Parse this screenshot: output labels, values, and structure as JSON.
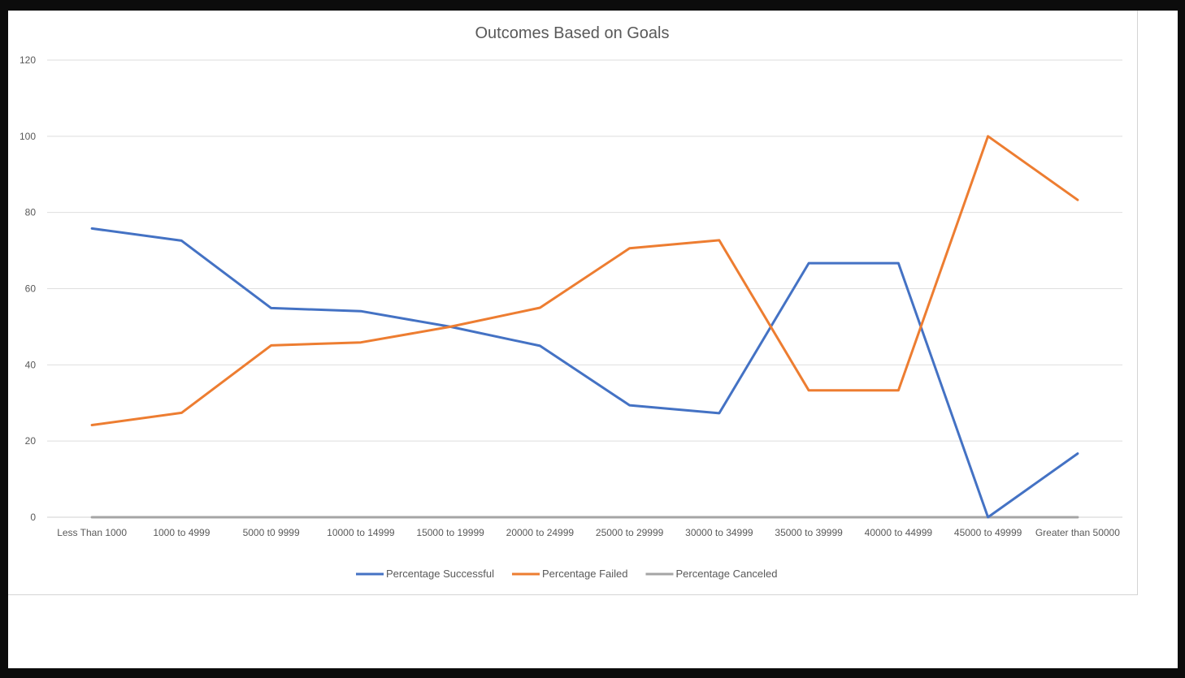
{
  "chart_data": {
    "type": "line",
    "title": "Outcomes Based on Goals",
    "xlabel": "",
    "ylabel": "",
    "ylim": [
      0,
      120
    ],
    "yticks": [
      0,
      20,
      40,
      60,
      80,
      100,
      120
    ],
    "grid": true,
    "legend_position": "bottom",
    "categories": [
      "Less Than 1000",
      "1000 to 4999",
      "5000 t0 9999",
      "10000 to 14999",
      "15000 to 19999",
      "20000 to 24999",
      "25000 to 29999",
      "30000 to 34999",
      "35000 to 39999",
      "40000 to 44999",
      "45000 to 49999",
      "Greater than 50000"
    ],
    "series": [
      {
        "name": "Percentage Successful",
        "color": "#4472c4",
        "values": [
          75.8,
          72.6,
          54.9,
          54.1,
          50,
          45,
          29.4,
          27.3,
          66.7,
          66.7,
          0,
          16.7
        ]
      },
      {
        "name": "Percentage Failed",
        "color": "#ed7d31",
        "values": [
          24.2,
          27.4,
          45.1,
          45.9,
          50,
          55,
          70.6,
          72.7,
          33.3,
          33.3,
          100,
          83.3
        ]
      },
      {
        "name": "Percentage Canceled",
        "color": "#a5a5a5",
        "values": [
          0,
          0,
          0,
          0,
          0,
          0,
          0,
          0,
          0,
          0,
          0,
          0
        ]
      }
    ]
  }
}
